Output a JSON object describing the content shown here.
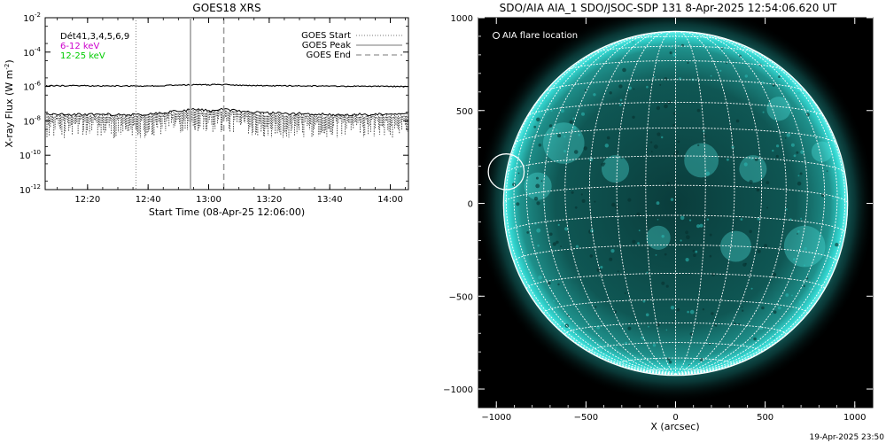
{
  "left_panel": {
    "title": "GOES18 XRS",
    "ylabel": "X-ray Flux (W m",
    "ylabel_sup": "-2",
    "ylabel_close": ")",
    "xlabel": "Start Time (08-Apr-25 12:06:00)",
    "channels_label": "Dét41,3,4,5,6,9",
    "band1": "6-12 keV",
    "band2": "12-25 keV",
    "band1_color": "#cc00cc",
    "band2_color": "#00cc00",
    "legend": [
      {
        "label": "GOES Start",
        "style": "dotted"
      },
      {
        "label": "GOES Peak",
        "style": "solid"
      },
      {
        "label": "GOES End",
        "style": "dashed"
      }
    ]
  },
  "right_panel": {
    "title": "SDO/AIA AIA_1 SDO/JSOC-SDP 131  8-Apr-2025 12:54:06.620 UT",
    "legend_label": "AIA flare location",
    "xlabel": "X (arcsec)",
    "image_color": "#33d6d0"
  },
  "footer": {
    "timestamp": "19-Apr-2025 23:50"
  },
  "chart_data": [
    {
      "type": "line",
      "title": "GOES18 XRS",
      "xlabel": "Start Time (08-Apr-25 12:06:00)",
      "ylabel": "X-ray Flux (W m^-2)",
      "yscale": "log",
      "ylim": [
        1e-12,
        0.01
      ],
      "xlim": [
        "12:06",
        "14:06"
      ],
      "x_ticks": [
        "12:20",
        "12:40",
        "13:00",
        "13:20",
        "13:40",
        "14:00"
      ],
      "y_ticks": [
        "10^-12",
        "10^-10",
        "10^-8",
        "10^-6",
        "10^-4",
        "10^-2"
      ],
      "series": [
        {
          "name": "",
          "x": [
            "12:06",
            "12:20",
            "12:40",
            "12:50",
            "12:55",
            "13:00",
            "13:05",
            "13:10",
            "13:20",
            "13:40",
            "14:00",
            "14:06"
          ],
          "values": [
            1.1e-06,
            1.1e-06,
            1.05e-06,
            1.2e-06,
            1.25e-06,
            1.25e-06,
            1.3e-06,
            1.15e-06,
            1.1e-06,
            1.05e-06,
            1e-06,
            1e-06
          ]
        },
        {
          "name": "",
          "noisy_band": true,
          "x": [
            "12:06",
            "12:20",
            "12:40",
            "12:50",
            "12:55",
            "13:00",
            "13:05",
            "13:10",
            "13:20",
            "13:40",
            "14:00",
            "14:06"
          ],
          "upper": [
            2.5e-08,
            2.5e-08,
            2.5e-08,
            4e-08,
            5e-08,
            4e-08,
            5e-08,
            4e-08,
            3e-08,
            2.5e-08,
            2.5e-08,
            2.5e-08
          ],
          "lower": [
            1e-09,
            1e-09,
            1e-09,
            2e-09,
            2e-09,
            2e-09,
            2e-09,
            2e-09,
            1e-09,
            1e-09,
            1e-09,
            1e-09
          ]
        }
      ],
      "markers": [
        {
          "name": "GOES Start",
          "x": "12:36",
          "style": "dotted"
        },
        {
          "name": "GOES Peak",
          "x": "12:54",
          "style": "solid"
        },
        {
          "name": "GOES End",
          "x": "13:05",
          "style": "dashed"
        }
      ]
    },
    {
      "type": "image",
      "title": "SDO/AIA AIA_1 SDO/JSOC-SDP 131  8-Apr-2025 12:54:06.620 UT",
      "xlabel": "X (arcsec)",
      "xlim": [
        -1100,
        1100
      ],
      "ylim": [
        -1100,
        1000
      ],
      "x_ticks": [
        -1000,
        -500,
        0,
        500,
        1000
      ],
      "y_ticks": [
        -1000,
        -500,
        0,
        500,
        1000
      ],
      "solar_radius_arcsec": 960,
      "grid_spacing_deg": 10,
      "flare_location": {
        "x": -945,
        "y": 170,
        "radius": 100
      }
    }
  ]
}
